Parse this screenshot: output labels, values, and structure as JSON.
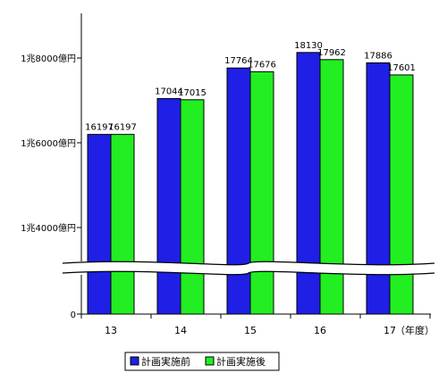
{
  "chart_data": {
    "type": "bar",
    "categories": [
      "13",
      "14",
      "15",
      "16",
      "17"
    ],
    "series": [
      {
        "name": "計画実施前",
        "values": [
          16197,
          17044,
          17764,
          18130,
          17886
        ],
        "labels": [
          "16197",
          "17044",
          "17764",
          "18130",
          "17886"
        ],
        "color": "#1f1fe6"
      },
      {
        "name": "計画実施後",
        "values": [
          16197,
          17015,
          17676,
          17962,
          17601
        ],
        "labels": [
          "16197",
          "17015",
          "17676",
          "17962",
          "17601"
        ],
        "color": "#22ee22"
      }
    ],
    "y_ticks": [
      {
        "value": 0,
        "label": "0"
      },
      {
        "value": 14000,
        "label": "1兆4000億円"
      },
      {
        "value": 16000,
        "label": "1兆6000億円"
      },
      {
        "value": 18000,
        "label": "1兆8000億円"
      }
    ],
    "axis_break": "between 0 and 14000",
    "ylim": [
      14000,
      19000
    ],
    "x_unit": "（年度）",
    "legend_position": "bottom-center"
  }
}
